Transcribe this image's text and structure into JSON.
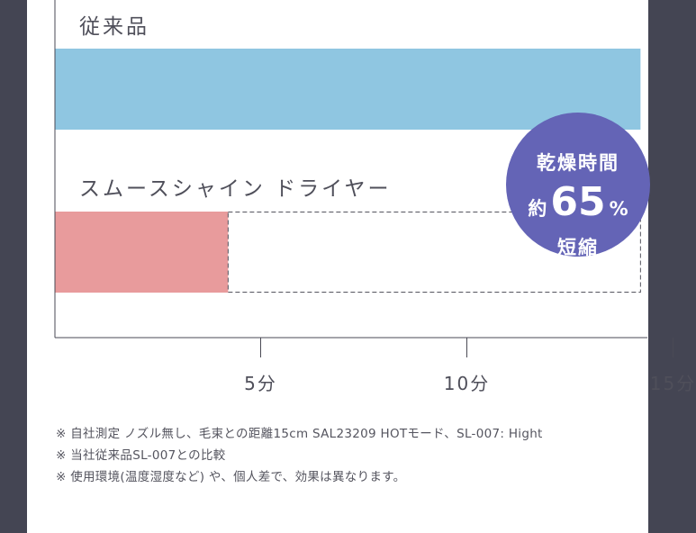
{
  "chart_data": {
    "type": "bar",
    "orientation": "horizontal",
    "unit": "分",
    "categories": [
      "従来品",
      "スムースシャイン ドライヤー"
    ],
    "values": [
      14.2,
      4.2
    ],
    "xlim": [
      0,
      15.7
    ],
    "xticks": [
      {
        "value": 5,
        "label": "5分"
      },
      {
        "value": 10,
        "label": "10分"
      },
      {
        "value": 15,
        "label": "15分"
      }
    ],
    "colors": [
      "#8fc6e1",
      "#e89b9c"
    ],
    "reference_outline": "dashed",
    "grid": false,
    "legend": "none"
  },
  "badge": {
    "line1": "乾燥時間",
    "prefix": "約",
    "number": "65",
    "unit": "%",
    "line3": "短縮",
    "color": "#6464b6"
  },
  "notes": [
    "※ 自社測定 ノズル無し、毛束との距離15cm SAL23209 HOTモード、SL-007: Hight",
    "※ 当社従来品SL-007との比較",
    "※ 使用環境(温度湿度など) や、個人差で、効果は異なります。"
  ],
  "colors": {
    "background": "#444553",
    "panel": "#ffffff",
    "axis": "#4a4a55"
  }
}
